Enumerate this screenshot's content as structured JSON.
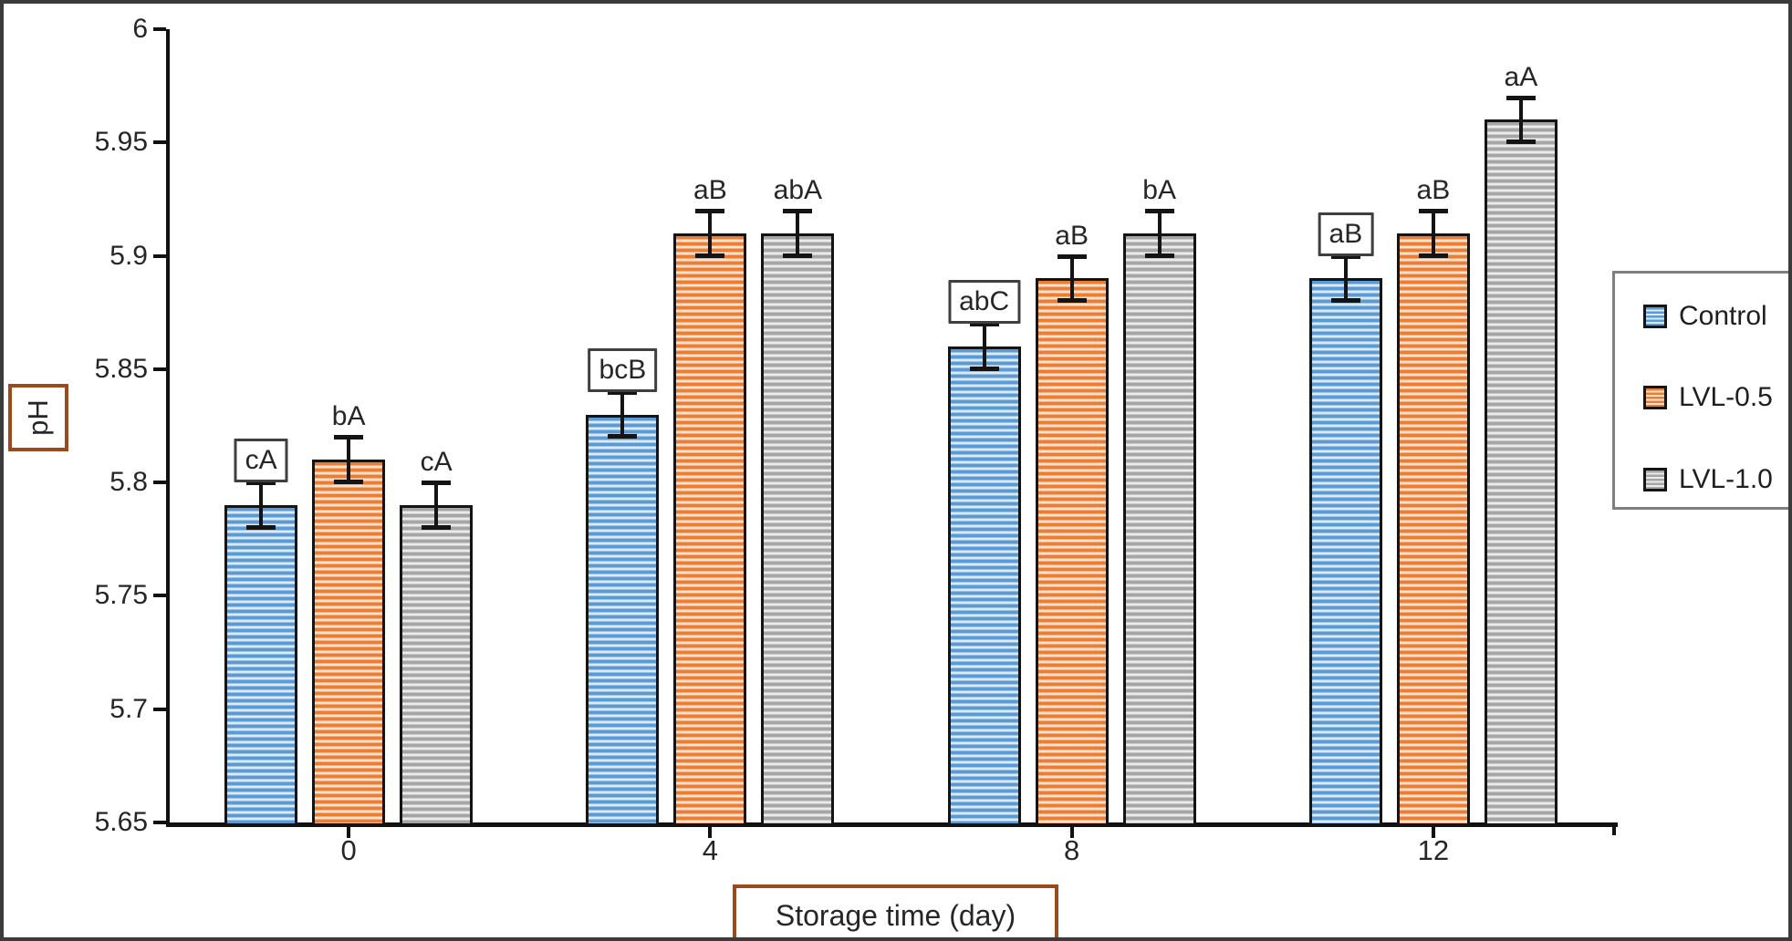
{
  "figure": {
    "frame_color": "#3b3b3b",
    "background": "#ffffff"
  },
  "y_axis": {
    "title": "pH",
    "title_box_border": "#9a4a1d",
    "tick_labels": [
      "6",
      "5.95",
      "5.9",
      "5.85",
      "5.8",
      "5.75",
      "5.7",
      "5.65"
    ],
    "min": 5.65,
    "max": 6.0,
    "tick_step": 0.05
  },
  "x_axis": {
    "title": "Storage time (day)",
    "title_box_border": "#9a4a1d",
    "tick_labels": [
      "0",
      "4",
      "8",
      "12"
    ]
  },
  "legend": {
    "border_color": "#7f7f7f",
    "position": "right",
    "entries": [
      "Control",
      "LVL-0.5",
      "LVL-1.0"
    ]
  },
  "chart_data": {
    "type": "bar",
    "title": "",
    "xlabel": "Storage time (day)",
    "ylabel": "pH",
    "ylim": [
      5.65,
      6.0
    ],
    "ytick_interval": 0.05,
    "grid": false,
    "legend_position": "right",
    "categories": [
      "0",
      "4",
      "8",
      "12"
    ],
    "series": [
      {
        "name": "Control",
        "color": "#5b9bd5",
        "light_color": "#dce9f6",
        "pattern": "horizontal-stripes",
        "values": [
          5.79,
          5.83,
          5.86,
          5.89
        ],
        "errors": [
          0.01,
          0.01,
          0.01,
          0.01
        ],
        "labels": [
          "cA",
          "bcB",
          "abC",
          "aB"
        ],
        "labels_boxed": [
          true,
          true,
          true,
          true
        ]
      },
      {
        "name": "LVL-0.5",
        "color": "#ed7d31",
        "light_color": "#fbe3d4",
        "pattern": "horizontal-stripes",
        "values": [
          5.81,
          5.91,
          5.89,
          5.91
        ],
        "errors": [
          0.01,
          0.01,
          0.01,
          0.01
        ],
        "labels": [
          "bA",
          "aB",
          "aB",
          "aB"
        ],
        "labels_boxed": [
          false,
          false,
          false,
          false
        ]
      },
      {
        "name": "LVL-1.0",
        "color": "#a6a6a6",
        "light_color": "#ebebeb",
        "pattern": "horizontal-stripes",
        "values": [
          5.79,
          5.91,
          5.91,
          5.96
        ],
        "errors": [
          0.01,
          0.01,
          0.01,
          0.01
        ],
        "labels": [
          "cA",
          "abA",
          "bA",
          "aA"
        ],
        "labels_boxed": [
          false,
          false,
          false,
          false
        ]
      }
    ]
  }
}
